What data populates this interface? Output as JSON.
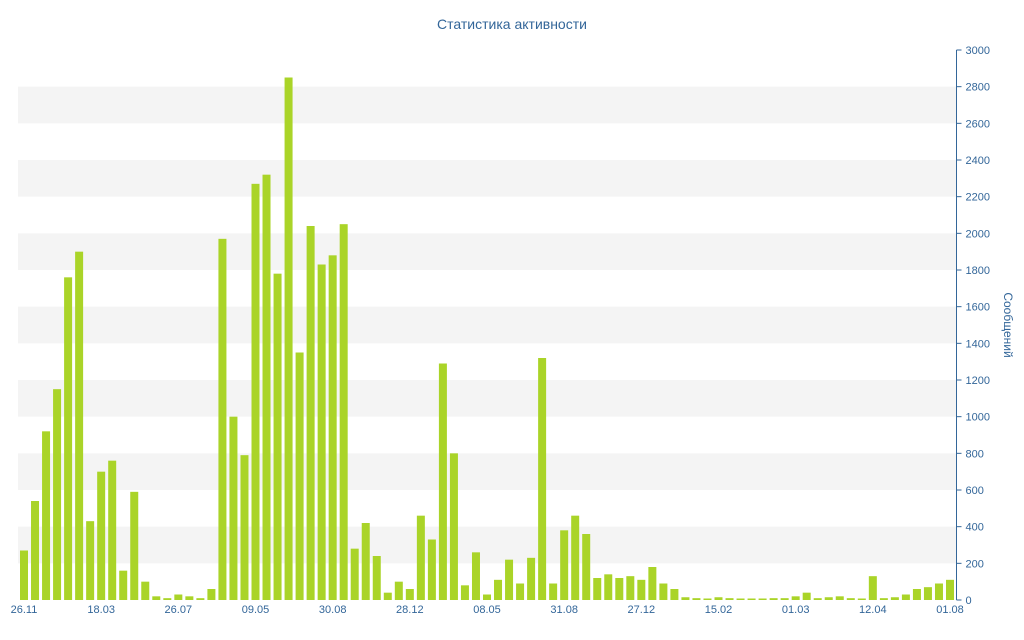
{
  "chart_data": {
    "type": "bar",
    "title": "Статистика активности",
    "xlabel": "",
    "ylabel": "Сообщений",
    "ylim": [
      0,
      3000
    ],
    "ytick_step": 200,
    "grid": "horizontal-alternating-bands",
    "legend": "none",
    "y_tick_labels": [
      "0",
      "200",
      "400",
      "600",
      "800",
      "1000",
      "1200",
      "1400",
      "1600",
      "1800",
      "2000",
      "2200",
      "2400",
      "2600",
      "2800",
      "3000"
    ],
    "x_tick_labels": [
      "26.11",
      "18.03",
      "26.07",
      "09.05",
      "30.08",
      "28.12",
      "08.05",
      "31.08",
      "27.12",
      "15.02",
      "01.03",
      "12.04",
      "01.08"
    ],
    "x_ticks_every_n_bars": 7,
    "values": [
      270,
      540,
      920,
      1150,
      1760,
      1900,
      430,
      700,
      760,
      160,
      590,
      100,
      20,
      10,
      30,
      20,
      10,
      60,
      1970,
      1000,
      790,
      2270,
      2320,
      1780,
      2850,
      1350,
      2040,
      1830,
      1880,
      2050,
      280,
      420,
      240,
      40,
      100,
      60,
      460,
      330,
      1290,
      800,
      80,
      260,
      30,
      110,
      220,
      90,
      230,
      1320,
      90,
      380,
      460,
      360,
      120,
      140,
      120,
      130,
      110,
      180,
      90,
      60,
      15,
      10,
      5,
      15,
      10,
      5,
      5,
      5,
      10,
      10,
      20,
      40,
      10,
      15,
      20,
      10,
      5,
      130,
      10,
      15,
      30,
      60,
      70,
      90,
      110
    ],
    "colors": {
      "bar": "#aad428",
      "band": "#f4f4f4",
      "axis_text": "#336699",
      "background": "#ffffff"
    }
  }
}
